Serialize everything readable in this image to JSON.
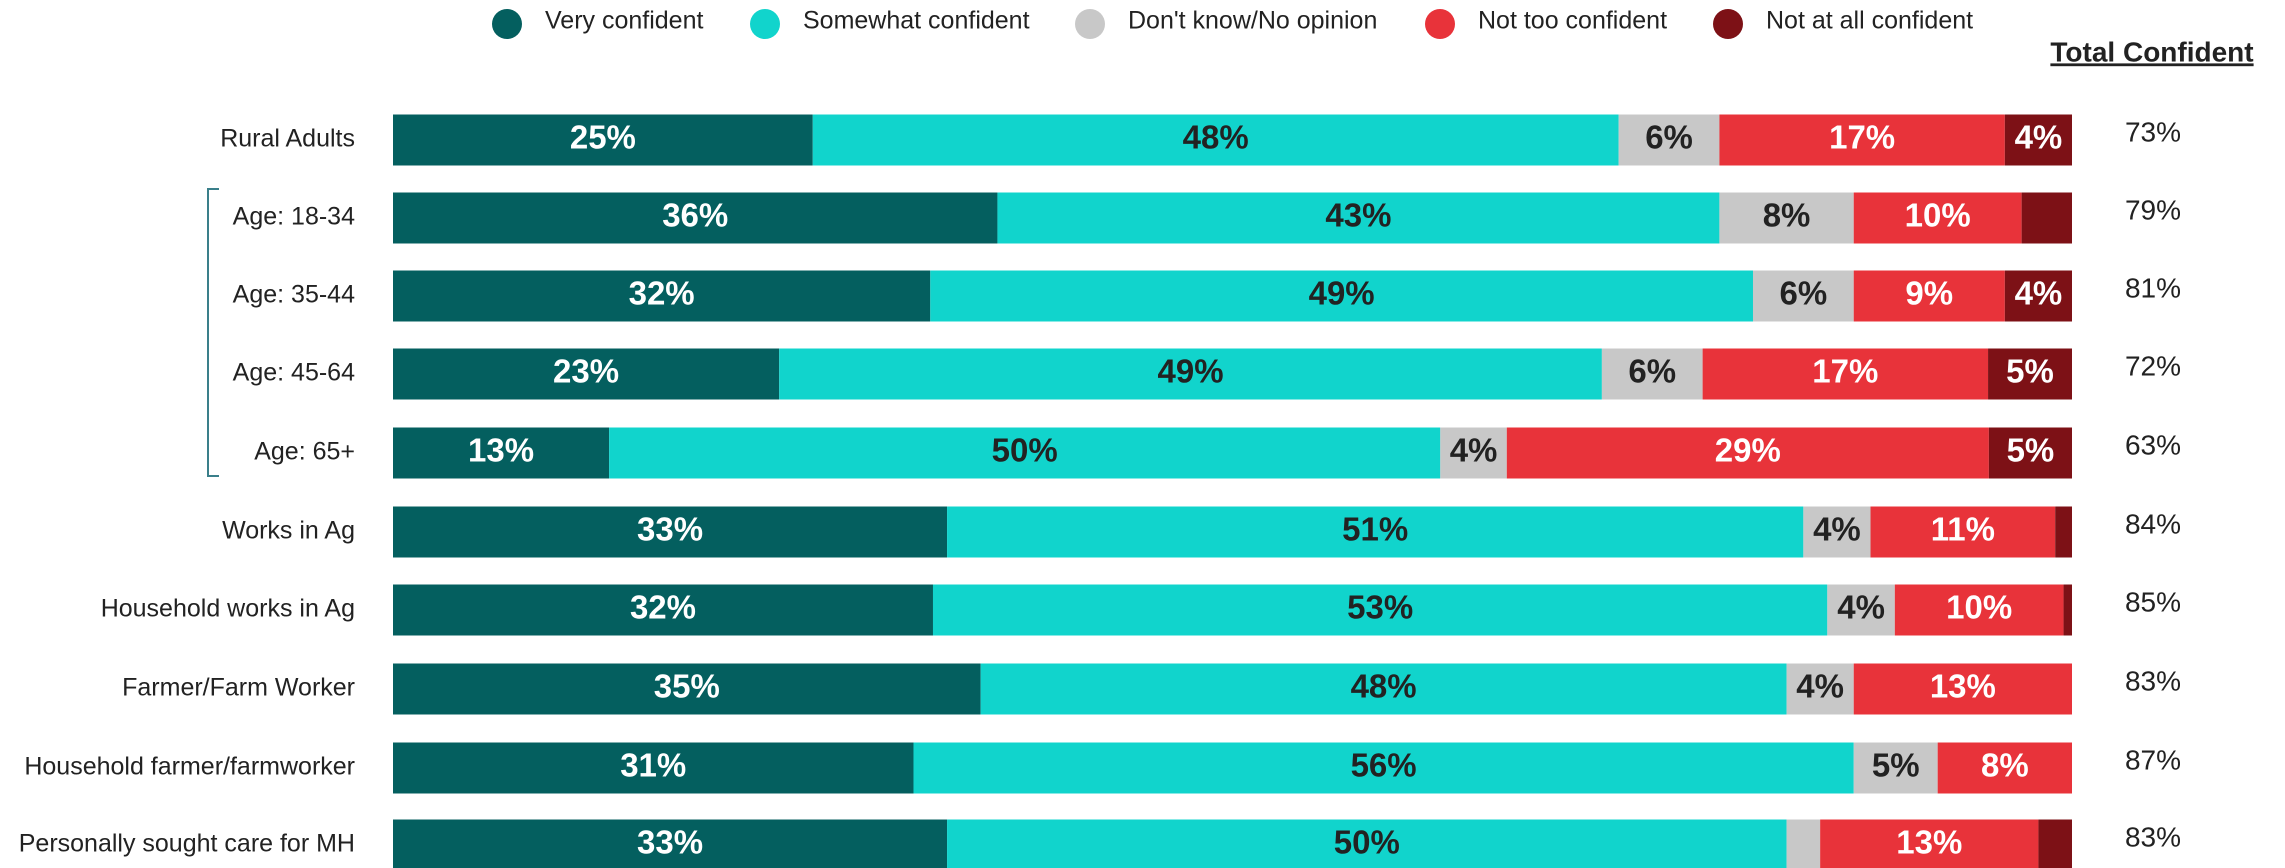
{
  "chart_data": {
    "type": "bar",
    "orientation": "horizontal",
    "stacked": true,
    "categories": [
      "Rural Adults",
      "Age: 18-34",
      "Age: 35-44",
      "Age: 45-64",
      "Age: 65+",
      "Works in Ag",
      "Household works in Ag",
      "Farmer/Farm Worker",
      "Household farmer/farmworker",
      "Personally sought care for MH"
    ],
    "series": [
      {
        "name": "Very confident",
        "color": "#045f5f",
        "values": [
          25,
          36,
          32,
          23,
          13,
          33,
          32,
          35,
          31,
          33
        ],
        "value_labels": [
          "25%",
          "36%",
          "32%",
          "23%",
          "13%",
          "33%",
          "32%",
          "35%",
          "31%",
          "33%"
        ]
      },
      {
        "name": "Somewhat confident",
        "color": "#11d4cc",
        "values": [
          48,
          43,
          49,
          49,
          50,
          51,
          53,
          48,
          56,
          50
        ],
        "value_labels": [
          "48%",
          "43%",
          "49%",
          "49%",
          "50%",
          "51%",
          "53%",
          "48%",
          "56%",
          "50%"
        ]
      },
      {
        "name": "Don't know/No opinion",
        "color": "#c8c8c8",
        "values": [
          6,
          8,
          6,
          6,
          4,
          4,
          4,
          4,
          5,
          2
        ],
        "value_labels": [
          "6%",
          "8%",
          "6%",
          "6%",
          "4%",
          "4%",
          "4%",
          "4%",
          "5%",
          null
        ]
      },
      {
        "name": "Not too confident",
        "color": "#e8333a",
        "values": [
          17,
          10,
          9,
          17,
          29,
          11,
          10,
          13,
          8,
          13
        ],
        "value_labels": [
          "17%",
          "10%",
          "9%",
          "17%",
          "29%",
          "11%",
          "10%",
          "13%",
          "8%",
          "13%"
        ]
      },
      {
        "name": "Not at all confident",
        "color": "#7d1116",
        "values": [
          4,
          3,
          4,
          5,
          5,
          1,
          0.5,
          0,
          0,
          2
        ],
        "value_labels": [
          "4%",
          null,
          "4%",
          "5%",
          "5%",
          null,
          null,
          null,
          null,
          null
        ]
      }
    ],
    "totals": {
      "title": "Total Confident",
      "values": [
        73,
        79,
        81,
        72,
        63,
        84,
        85,
        83,
        87,
        83
      ],
      "value_labels": [
        "73%",
        "79%",
        "81%",
        "72%",
        "63%",
        "84%",
        "85%",
        "83%",
        "87%",
        "83%"
      ]
    }
  }
}
